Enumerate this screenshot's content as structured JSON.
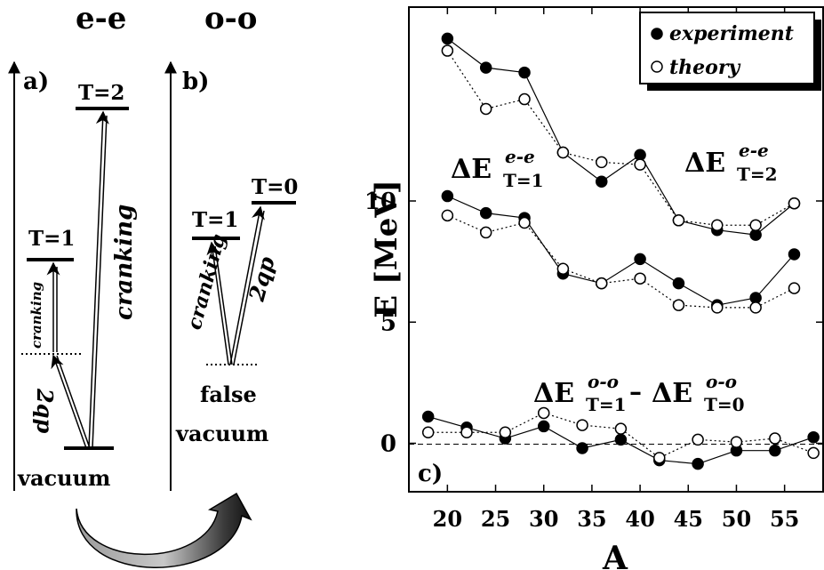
{
  "left_diagram": {
    "header_ee": "e-e",
    "header_oo": "o-o",
    "panel_a_label": "a)",
    "panel_b_label": "b)",
    "a_levels": {
      "t2": "T=2",
      "t1": "T=1"
    },
    "a_arrows": {
      "cranking_big": "cranking",
      "cranking_small": "cranking",
      "two_qp": "2qp"
    },
    "a_vacuum": "vacuum",
    "b_levels": {
      "t0": "T=0",
      "t1": "T=1"
    },
    "b_arrows": {
      "cranking": "cranking",
      "two_qp": "2qp"
    },
    "b_false": "false",
    "b_vacuum": "vacuum"
  },
  "legend": {
    "experiment": "experiment",
    "theory": "theory"
  },
  "panel_c_label": "c)",
  "annotations": {
    "de_t1_ee_base": "ΔE",
    "de_t1_ee_sup": "e-e",
    "de_t1_ee_sub": "T=1",
    "de_t2_ee_base": "ΔE",
    "de_t2_ee_sup": "e-e",
    "de_t2_ee_sub": "T=2",
    "oo_first_base": "ΔE",
    "oo_first_sup": "o-o",
    "oo_first_sub": "T=1",
    "oo_minus": "–",
    "oo_second_base": "ΔE",
    "oo_second_sup": "o-o",
    "oo_second_sub": "T=0"
  },
  "chart_data": {
    "type": "line",
    "xlabel": "A",
    "ylabel": "E [MeV]",
    "xlim": [
      16,
      59
    ],
    "ylim": [
      -2,
      18
    ],
    "xticks": [
      20,
      25,
      30,
      35,
      40,
      45,
      50,
      55
    ],
    "yticks": [
      0,
      5,
      10
    ],
    "series": [
      {
        "name": "experiment",
        "group": "T2",
        "style": "filled-solid",
        "x": [
          20,
          24,
          28,
          32,
          36,
          40,
          44,
          48,
          52,
          56
        ],
        "y": [
          16.7,
          15.5,
          15.3,
          12.0,
          10.8,
          11.9,
          9.2,
          8.8,
          8.6,
          9.9
        ]
      },
      {
        "name": "theory",
        "group": "T2",
        "style": "open-dotted",
        "x": [
          20,
          24,
          28,
          32,
          36,
          40,
          44,
          48,
          52,
          56
        ],
        "y": [
          16.2,
          13.8,
          14.2,
          12.0,
          11.6,
          11.5,
          9.2,
          9.0,
          9.0,
          9.9
        ]
      },
      {
        "name": "experiment",
        "group": "T1",
        "style": "filled-solid",
        "x": [
          20,
          24,
          28,
          32,
          36,
          40,
          44,
          48,
          52,
          56
        ],
        "y": [
          10.2,
          9.5,
          9.3,
          7.0,
          6.6,
          7.6,
          6.6,
          5.7,
          6.0,
          7.8
        ]
      },
      {
        "name": "theory",
        "group": "T1",
        "style": "open-dotted",
        "x": [
          20,
          24,
          28,
          32,
          36,
          40,
          44,
          48,
          52,
          56
        ],
        "y": [
          9.4,
          8.7,
          9.1,
          7.2,
          6.6,
          6.8,
          5.7,
          5.6,
          5.6,
          6.4
        ]
      },
      {
        "name": "experiment",
        "group": "OO",
        "style": "filled-solid",
        "x": [
          18,
          22,
          26,
          30,
          34,
          38,
          42,
          46,
          50,
          54,
          58
        ],
        "y": [
          1.1,
          0.65,
          0.2,
          0.7,
          -0.2,
          0.15,
          -0.7,
          -0.85,
          -0.3,
          -0.3,
          0.25
        ]
      },
      {
        "name": "theory",
        "group": "OO",
        "style": "open-dotted",
        "x": [
          18,
          22,
          26,
          30,
          34,
          38,
          42,
          46,
          50,
          54,
          58
        ],
        "y": [
          0.45,
          0.45,
          0.45,
          1.25,
          0.75,
          0.6,
          -0.6,
          0.15,
          0.05,
          0.2,
          -0.4
        ]
      }
    ],
    "grid": false,
    "legend_position": "top-right"
  }
}
